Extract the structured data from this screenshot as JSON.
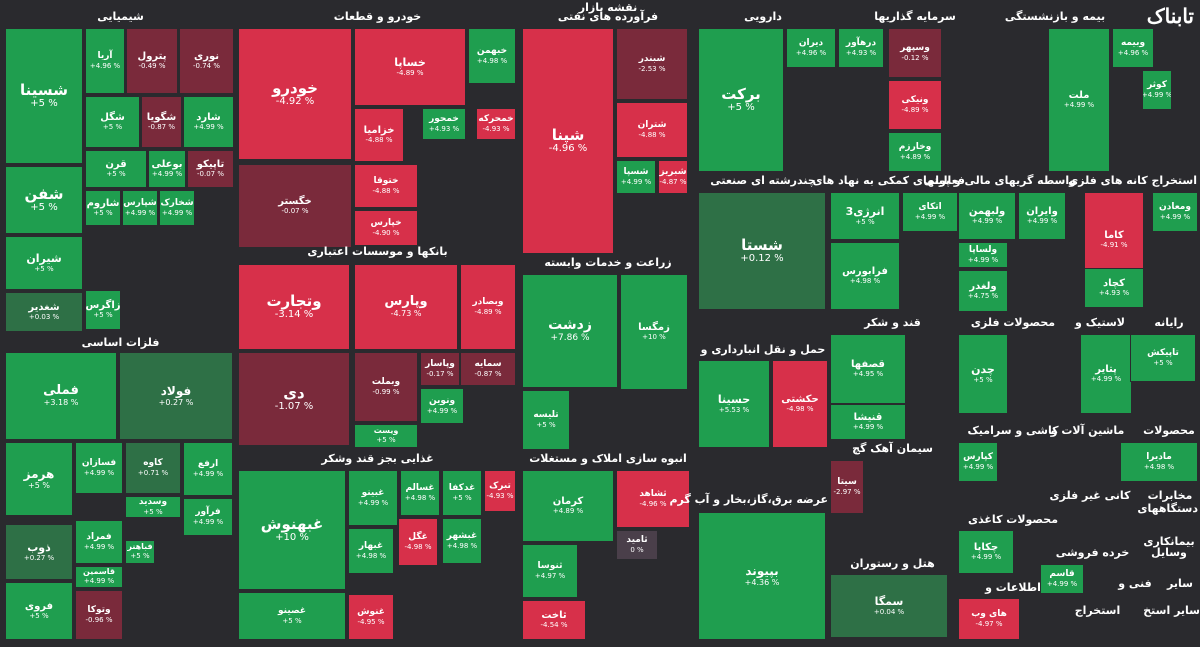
{
  "title": "نقشه بازار",
  "logo": "تابناک",
  "colors": {
    "up": "#1f9e4f",
    "up_dark": "#2e7046",
    "down": "#d7304a",
    "down_dark": "#7a2a3b",
    "neutral": "#4a3f4a"
  },
  "chart_data": {
    "type": "treemap",
    "title": "نقشه بازار",
    "sectors": [
      {
        "name": "شیمیایی",
        "stocks": [
          {
            "name": "شسینا",
            "change": 5
          },
          {
            "name": "شفن",
            "change": 5
          },
          {
            "name": "شیران",
            "change": 5
          },
          {
            "name": "شغدیر",
            "change": 0.03
          },
          {
            "name": "آریا",
            "change": 4.96
          },
          {
            "name": "پترول",
            "change": -0.49
          },
          {
            "name": "نوری",
            "change": -0.74
          },
          {
            "name": "شگل",
            "change": 5
          },
          {
            "name": "شگویا",
            "change": -0.87
          },
          {
            "name": "شارد",
            "change": 4.99
          },
          {
            "name": "قرن",
            "change": 5
          },
          {
            "name": "بوعلی",
            "change": 4.99
          },
          {
            "name": "تاپیکو",
            "change": -0.07
          },
          {
            "name": "شاروم",
            "change": 5
          },
          {
            "name": "شپارس",
            "change": 4.99
          },
          {
            "name": "شخارک",
            "change": 4.99
          },
          {
            "name": "زاگرس",
            "change": 5
          }
        ]
      },
      {
        "name": "فلزات اساسی",
        "stocks": [
          {
            "name": "فملی",
            "change": 3.18
          },
          {
            "name": "فولاد",
            "change": 0.27
          },
          {
            "name": "هرمز",
            "change": 5
          },
          {
            "name": "فسازان",
            "change": 4.99
          },
          {
            "name": "کاوه",
            "change": 0.71
          },
          {
            "name": "ارفع",
            "change": 4.99
          },
          {
            "name": "فرآور",
            "change": 4.99
          },
          {
            "name": "وسدید",
            "change": 5
          },
          {
            "name": "فمراد",
            "change": 4.99
          },
          {
            "name": "ذوب",
            "change": 0.27
          },
          {
            "name": "فباهنر",
            "change": 5
          },
          {
            "name": "قاسمین",
            "change": 4.99
          },
          {
            "name": "فروی",
            "change": 5
          },
          {
            "name": "وتوکا",
            "change": -0.96
          }
        ]
      },
      {
        "name": "خودرو و قطعات",
        "stocks": [
          {
            "name": "خودرو",
            "change": -4.92
          },
          {
            "name": "خساپا",
            "change": -4.89
          },
          {
            "name": "خبهمن",
            "change": 4.98
          },
          {
            "name": "خزامیا",
            "change": -4.88
          },
          {
            "name": "خمحور",
            "change": 4.93
          },
          {
            "name": "خمحرکه",
            "change": -4.93
          },
          {
            "name": "خگستر",
            "change": -0.07
          },
          {
            "name": "ختوقا",
            "change": -4.88
          },
          {
            "name": "خپارس",
            "change": -4.9
          }
        ]
      },
      {
        "name": "بانکها و موسسات اعتباری",
        "stocks": [
          {
            "name": "وتجارت",
            "change": -3.14
          },
          {
            "name": "وپارس",
            "change": -4.73
          },
          {
            "name": "وبصادر",
            "change": -4.89
          },
          {
            "name": "دی",
            "change": -1.07
          },
          {
            "name": "وبملت",
            "change": -0.99
          },
          {
            "name": "وپاسار",
            "change": -0.17
          },
          {
            "name": "سمایه",
            "change": -0.87
          },
          {
            "name": "ونوین",
            "change": 4.99
          },
          {
            "name": "ویست",
            "change": 5
          }
        ]
      },
      {
        "name": "فرآورده های نفتی",
        "stocks": [
          {
            "name": "شپنا",
            "change": -4.96
          },
          {
            "name": "شبندر",
            "change": -2.53
          },
          {
            "name": "شتران",
            "change": -4.88
          },
          {
            "name": "شسپا",
            "change": 4.99
          },
          {
            "name": "شبریز",
            "change": -4.87
          }
        ]
      },
      {
        "name": "دارویی",
        "stocks": [
          {
            "name": "برکت",
            "change": 5
          },
          {
            "name": "دیران",
            "change": 4.96
          },
          {
            "name": "درهآور",
            "change": 4.93
          }
        ]
      },
      {
        "name": "سرمایه گذاریها",
        "stocks": [
          {
            "name": "وسپهر",
            "change": -0.12
          },
          {
            "name": "ونیکی",
            "change": -4.89
          },
          {
            "name": "وخارزم",
            "change": 4.89
          }
        ]
      },
      {
        "name": "بیمه و بازنشستگی",
        "stocks": [
          {
            "name": "وبیمه",
            "change": 4.96
          },
          {
            "name": "ملت",
            "change": 4.99
          },
          {
            "name": "کوثر",
            "change": 4.99
          }
        ]
      },
      {
        "name": "چندرشته ای صنعتی",
        "stocks": [
          {
            "name": "شستا",
            "change": 0.12
          }
        ]
      },
      {
        "name": "زراعت و خدمات وابسته",
        "stocks": [
          {
            "name": "زدشت",
            "change": 7.86
          },
          {
            "name": "زمگسا",
            "change": 10
          },
          {
            "name": "تلیسه",
            "change": 5
          }
        ]
      },
      {
        "name": "غذایی بجز قند وشکر",
        "stocks": [
          {
            "name": "غبهنوش",
            "change": 10
          },
          {
            "name": "غبینو",
            "change": 4.99
          },
          {
            "name": "غسالم",
            "change": 4.98
          },
          {
            "name": "غدکفا",
            "change": 5
          },
          {
            "name": "تبرک",
            "change": -4.93
          },
          {
            "name": "غگل",
            "change": -4.98
          },
          {
            "name": "غبشهر",
            "change": 4.98
          },
          {
            "name": "غبهار",
            "change": 4.98
          },
          {
            "name": "غصینو",
            "change": 5
          },
          {
            "name": "غنوش",
            "change": -4.95
          }
        ]
      },
      {
        "name": "انبوه سازی املاک و مستغلات",
        "stocks": [
          {
            "name": "کرمان",
            "change": 4.89
          },
          {
            "name": "ثشاهد",
            "change": -4.96
          },
          {
            "name": "ثامید",
            "change": 0
          },
          {
            "name": "ثنوسا",
            "change": 4.97
          },
          {
            "name": "ثاخت",
            "change": -4.54
          }
        ]
      },
      {
        "name": "حمل و نقل انبارداری و",
        "stocks": [
          {
            "name": "حسینا",
            "change": 5.53
          },
          {
            "name": "حکشتی",
            "change": -4.98
          }
        ]
      },
      {
        "name": "عرضه برق،گاز،بخار و آب گرم",
        "stocks": [
          {
            "name": "بپیوند",
            "change": 4.36
          }
        ]
      },
      {
        "name": "فعالیتهای کمکی به نهاد های",
        "stocks": [
          {
            "name": "انرژی3",
            "change": 5
          },
          {
            "name": "اتکای",
            "change": 4.99
          },
          {
            "name": "فرابورس",
            "change": 4.98
          }
        ]
      },
      {
        "name": "واسطه گریهای مالی و پولی",
        "stocks": [
          {
            "name": "ولبهمن",
            "change": 4.99
          },
          {
            "name": "وایران",
            "change": 4.99
          },
          {
            "name": "ولساپا",
            "change": 4.99
          },
          {
            "name": "ولغدر",
            "change": 4.75
          }
        ]
      },
      {
        "name": "استخراج کانه های فلزی",
        "stocks": [
          {
            "name": "ومعادن",
            "change": 4.99
          },
          {
            "name": "کاما",
            "change": -4.91
          },
          {
            "name": "کچاد",
            "change": 4.93
          }
        ]
      },
      {
        "name": "قند و شکر",
        "stocks": [
          {
            "name": "قصفها",
            "change": 4.95
          },
          {
            "name": "قنیشا",
            "change": 4.99
          }
        ]
      },
      {
        "name": "محصولات فلزی",
        "stocks": [
          {
            "name": "چدن",
            "change": 5
          }
        ]
      },
      {
        "name": "لاستیک و",
        "stocks": [
          {
            "name": "پتایر",
            "change": 4.99
          }
        ]
      },
      {
        "name": "رایانه",
        "stocks": [
          {
            "name": "تاپیکش",
            "change": 5
          }
        ]
      },
      {
        "name": "سیمان آهک گچ",
        "stocks": [
          {
            "name": "سیتا",
            "change": -2.97
          }
        ]
      },
      {
        "name": "هتل و رستوران",
        "stocks": [
          {
            "name": "سمگا",
            "change": 0.04
          }
        ]
      },
      {
        "name": "کاشی و سرامیک",
        "stocks": [
          {
            "name": "کپارس",
            "change": 4.99
          }
        ]
      },
      {
        "name": "محصولات کاغذی",
        "stocks": [
          {
            "name": "چکاپا",
            "change": 4.99
          }
        ]
      },
      {
        "name": "اطلاعات و",
        "stocks": [
          {
            "name": "های وب",
            "change": -4.97
          }
        ]
      },
      {
        "name": "ماشین آلات و",
        "stocks": []
      },
      {
        "name": "محصولات",
        "stocks": [
          {
            "name": "مادیرا",
            "change": 4.98
          }
        ]
      },
      {
        "name": "کانی غیر فلزی",
        "stocks": []
      },
      {
        "name": "خرده فروشی",
        "stocks": [
          {
            "name": "قاسم",
            "change": 4.99
          }
        ]
      },
      {
        "name": "فنی و",
        "stocks": []
      },
      {
        "name": "سایر",
        "stocks": []
      },
      {
        "name": "مخابرات",
        "stocks": []
      },
      {
        "name": "دستگاههای",
        "stocks": []
      },
      {
        "name": "بیمانکاری",
        "stocks": []
      },
      {
        "name": "وسایل",
        "stocks": []
      },
      {
        "name": "استخراج",
        "stocks": []
      },
      {
        "name": "سایر استخ",
        "stocks": []
      }
    ]
  }
}
